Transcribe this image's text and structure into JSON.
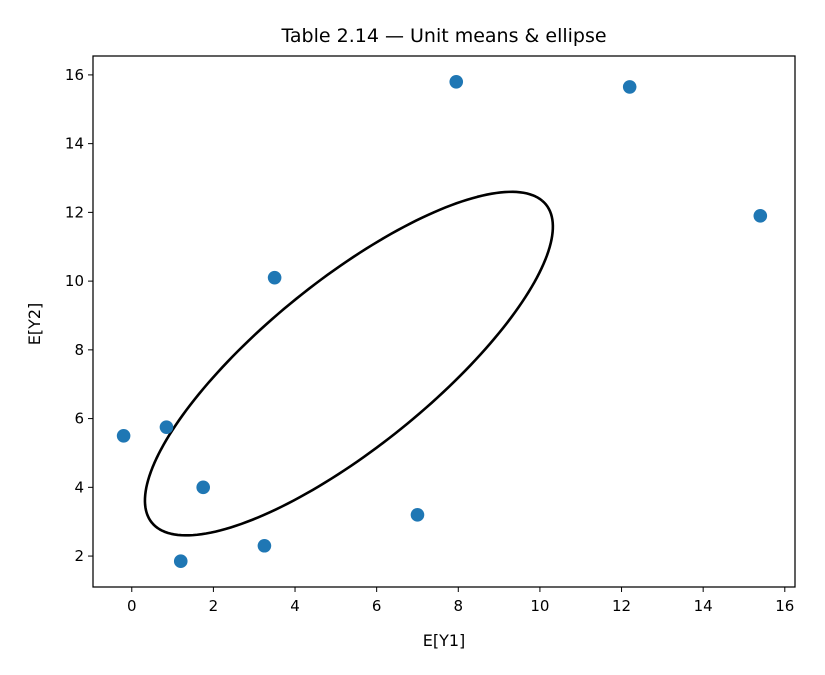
{
  "chart_data": {
    "type": "scatter",
    "title": "Table 2.14 — Unit means & ellipse",
    "xlabel": "E[Y1]",
    "ylabel": "E[Y2]",
    "xlim": [
      -0.95,
      16.25
    ],
    "ylim": [
      1.1,
      16.55
    ],
    "xticks": [
      0,
      2,
      4,
      6,
      8,
      10,
      12,
      14,
      16
    ],
    "yticks": [
      2,
      4,
      6,
      8,
      10,
      12,
      14,
      16
    ],
    "grid": false,
    "legend": "none",
    "point_color": "#1f77b4",
    "ellipse_color": "#000000",
    "series": [
      {
        "points": [
          {
            "x": -0.2,
            "y": 5.5
          },
          {
            "x": 0.85,
            "y": 5.75
          },
          {
            "x": 1.2,
            "y": 1.85
          },
          {
            "x": 1.75,
            "y": 4.0
          },
          {
            "x": 3.25,
            "y": 2.3
          },
          {
            "x": 3.5,
            "y": 10.1
          },
          {
            "x": 7.0,
            "y": 3.2
          },
          {
            "x": 7.95,
            "y": 15.8
          },
          {
            "x": 12.2,
            "y": 15.65
          },
          {
            "x": 15.4,
            "y": 11.9
          }
        ]
      }
    ],
    "ellipse": {
      "center": [
        5.32,
        7.6
      ],
      "semi_axes": [
        6.7,
        2.25
      ],
      "angle_deg": 45
    }
  }
}
